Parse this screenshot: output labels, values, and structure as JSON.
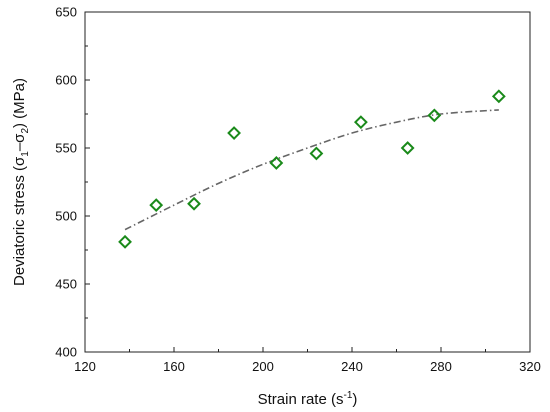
{
  "chart_data": {
    "type": "scatter",
    "xlabel": "Strain rate (s⁻¹)",
    "xlabel_parts": {
      "main": "Strain rate (s",
      "sup": "-1",
      "close": ")"
    },
    "ylabel": "Deviatoric stress (σ₁–σ₂) (MPa)",
    "ylabel_parts": {
      "pre": "Deviatoric stress (",
      "s1": "σ",
      "sub1": "1",
      "dash": "–",
      "s2": "σ",
      "sub2": "2",
      "post": ") (MPa)"
    },
    "xlim": [
      120,
      320
    ],
    "ylim": [
      400,
      650
    ],
    "x_ticks": [
      "120",
      "160",
      "200",
      "240",
      "280",
      "320"
    ],
    "y_ticks": [
      "400",
      "450",
      "500",
      "550",
      "600",
      "650"
    ],
    "grid": false,
    "legend": "none",
    "series": [
      {
        "marker": "diamond-open",
        "color": "#1a8a1a",
        "points": [
          {
            "x": 138,
            "y": 481
          },
          {
            "x": 152,
            "y": 508
          },
          {
            "x": 169,
            "y": 509
          },
          {
            "x": 187,
            "y": 561
          },
          {
            "x": 206,
            "y": 539
          },
          {
            "x": 224,
            "y": 546
          },
          {
            "x": 244,
            "y": 569
          },
          {
            "x": 265,
            "y": 550
          },
          {
            "x": 277,
            "y": 574
          },
          {
            "x": 306,
            "y": 588
          }
        ]
      }
    ],
    "fit": {
      "style": "dash-dot",
      "color": "#666666",
      "points": [
        {
          "x": 138,
          "y": 490
        },
        {
          "x": 160,
          "y": 508
        },
        {
          "x": 180,
          "y": 524
        },
        {
          "x": 200,
          "y": 538
        },
        {
          "x": 220,
          "y": 550
        },
        {
          "x": 240,
          "y": 561
        },
        {
          "x": 260,
          "y": 569
        },
        {
          "x": 280,
          "y": 575
        },
        {
          "x": 306,
          "y": 578
        }
      ]
    }
  }
}
